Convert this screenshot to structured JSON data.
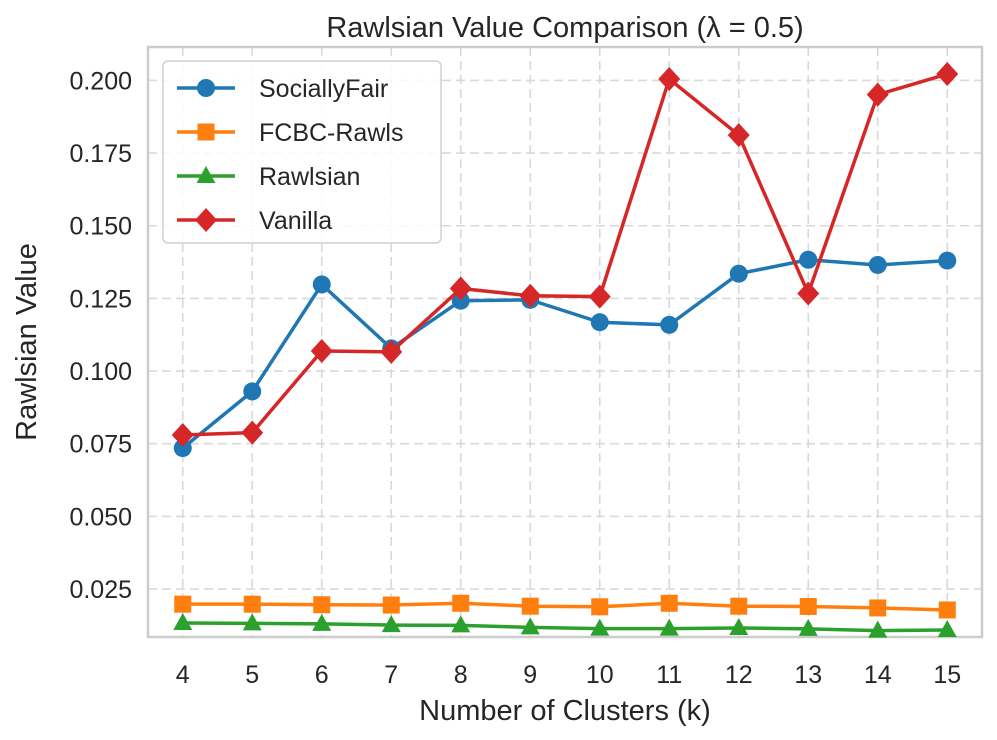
{
  "chart_data": {
    "type": "line",
    "title": "Rawlsian Value Comparison (λ = 0.5)",
    "xlabel": "Number of Clusters (k)",
    "ylabel": "Rawlsian Value",
    "x": [
      4,
      5,
      6,
      7,
      8,
      9,
      10,
      11,
      12,
      13,
      14,
      15
    ],
    "x_tick_labels": [
      "4",
      "5",
      "6",
      "7",
      "8",
      "9",
      "10",
      "11",
      "12",
      "13",
      "14",
      "15"
    ],
    "y_ticks": [
      0.025,
      0.05,
      0.075,
      0.1,
      0.125,
      0.15,
      0.175,
      0.2
    ],
    "y_tick_labels": [
      "0.025",
      "0.050",
      "0.075",
      "0.100",
      "0.125",
      "0.150",
      "0.175",
      "0.200"
    ],
    "xlim": [
      3.5,
      15.5
    ],
    "ylim": [
      0.0085,
      0.2115
    ],
    "grid": true,
    "legend_position": "top-left",
    "series": [
      {
        "name": "SociallyFair",
        "color": "#1f77b4",
        "marker": "circle",
        "values": [
          0.0735,
          0.093,
          0.1298,
          0.1078,
          0.1242,
          0.1245,
          0.1168,
          0.1159,
          0.1335,
          0.1383,
          0.1365,
          0.138
        ]
      },
      {
        "name": "FCBC-Rawls",
        "color": "#ff7f0e",
        "marker": "square",
        "values": [
          0.0198,
          0.0198,
          0.0196,
          0.0195,
          0.0201,
          0.0191,
          0.0189,
          0.0201,
          0.0191,
          0.019,
          0.0185,
          0.0178
        ]
      },
      {
        "name": "Rawlsian",
        "color": "#2ca02c",
        "marker": "triangle",
        "values": [
          0.0133,
          0.0132,
          0.013,
          0.0126,
          0.0125,
          0.0118,
          0.0114,
          0.0114,
          0.0116,
          0.0113,
          0.0107,
          0.0109
        ]
      },
      {
        "name": "Vanilla",
        "color": "#d62728",
        "marker": "diamond",
        "values": [
          0.078,
          0.0788,
          0.1069,
          0.1066,
          0.1284,
          0.1259,
          0.1256,
          0.2005,
          0.1812,
          0.1267,
          0.1951,
          0.2022
        ]
      }
    ]
  }
}
